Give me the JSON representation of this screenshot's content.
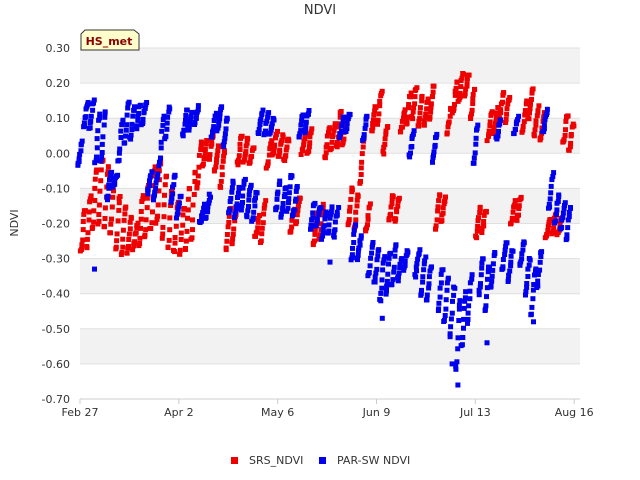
{
  "chart_data": {
    "type": "scatter",
    "title": "NDVI",
    "xlabel": "",
    "ylabel": "NDVI",
    "station_tag": "HS_met",
    "ylim": [
      -0.7,
      0.3
    ],
    "xlim_day": [
      0,
      172
    ],
    "y_ticks": [
      {
        "value": 0.3,
        "label": "0.30"
      },
      {
        "value": 0.2,
        "label": "0.20"
      },
      {
        "value": 0.1,
        "label": "0.10"
      },
      {
        "value": 0.0,
        "label": "0.00"
      },
      {
        "value": -0.1,
        "label": "-0.10"
      },
      {
        "value": -0.2,
        "label": "-0.20"
      },
      {
        "value": -0.3,
        "label": "-0.30"
      },
      {
        "value": -0.4,
        "label": "-0.40"
      },
      {
        "value": -0.5,
        "label": "-0.50"
      },
      {
        "value": -0.6,
        "label": "-0.60"
      },
      {
        "value": -0.7,
        "label": "-0.70"
      }
    ],
    "x_ticks": [
      {
        "day": 0,
        "label": "Feb 27"
      },
      {
        "day": 34,
        "label": "Apr 2"
      },
      {
        "day": 68,
        "label": "May 6"
      },
      {
        "day": 102,
        "label": "Jun 9"
      },
      {
        "day": 136,
        "label": "Jul 13"
      },
      {
        "day": 170,
        "label": "Aug 16"
      }
    ],
    "legend_position": "bottom-center",
    "series": [
      {
        "name": "SRS_NDVI",
        "color": "#ee0000",
        "daily_cycles": [
          {
            "day": 1,
            "max": -0.16,
            "min": -0.28
          },
          {
            "day": 3,
            "max": -0.12,
            "min": -0.27
          },
          {
            "day": 5,
            "max": -0.05,
            "min": -0.22
          },
          {
            "day": 7,
            "max": -0.02,
            "min": -0.2
          },
          {
            "day": 9,
            "max": -0.04,
            "min": -0.21
          },
          {
            "day": 11,
            "max": -0.08,
            "min": -0.23
          },
          {
            "day": 13,
            "max": -0.12,
            "min": -0.27
          },
          {
            "day": 15,
            "max": -0.15,
            "min": -0.29
          },
          {
            "day": 17,
            "max": -0.18,
            "min": -0.28
          },
          {
            "day": 19,
            "max": -0.2,
            "min": -0.27
          },
          {
            "day": 21,
            "max": -0.12,
            "min": -0.26
          },
          {
            "day": 23,
            "max": -0.08,
            "min": -0.24
          },
          {
            "day": 25,
            "max": -0.04,
            "min": -0.22
          },
          {
            "day": 27,
            "max": -0.02,
            "min": -0.2
          },
          {
            "day": 29,
            "max": -0.06,
            "min": -0.24
          },
          {
            "day": 31,
            "max": -0.1,
            "min": -0.27
          },
          {
            "day": 33,
            "max": -0.14,
            "min": -0.28
          },
          {
            "day": 35,
            "max": -0.16,
            "min": -0.29
          },
          {
            "day": 37,
            "max": -0.1,
            "min": -0.28
          },
          {
            "day": 39,
            "max": -0.05,
            "min": -0.25
          },
          {
            "day": 41,
            "max": 0.03,
            "min": -0.1
          },
          {
            "day": 43,
            "max": 0.04,
            "min": -0.03
          },
          {
            "day": 45,
            "max": 0.05,
            "min": -0.02
          },
          {
            "day": 47,
            "max": 0.02,
            "min": -0.05
          },
          {
            "day": 49,
            "max": 0.01,
            "min": -0.1
          },
          {
            "day": 51,
            "max": -0.16,
            "min": -0.27
          },
          {
            "day": 53,
            "max": -0.17,
            "min": -0.26
          },
          {
            "day": 55,
            "max": 0.05,
            "min": -0.03
          },
          {
            "day": 57,
            "max": 0.04,
            "min": -0.02
          },
          {
            "day": 59,
            "max": 0.02,
            "min": -0.03
          },
          {
            "day": 61,
            "max": -0.18,
            "min": -0.24
          },
          {
            "day": 63,
            "max": -0.14,
            "min": -0.25
          },
          {
            "day": 65,
            "max": 0.03,
            "min": -0.04
          },
          {
            "day": 67,
            "max": 0.06,
            "min": -0.01
          },
          {
            "day": 69,
            "max": 0.05,
            "min": -0.01
          },
          {
            "day": 71,
            "max": 0.04,
            "min": -0.02
          },
          {
            "day": 73,
            "max": -0.16,
            "min": -0.23
          },
          {
            "day": 75,
            "max": -0.13,
            "min": -0.2
          },
          {
            "day": 77,
            "max": 0.06,
            "min": 0.0
          },
          {
            "day": 79,
            "max": 0.07,
            "min": 0.0
          },
          {
            "day": 81,
            "max": -0.17,
            "min": -0.26
          },
          {
            "day": 83,
            "max": -0.15,
            "min": -0.24
          },
          {
            "day": 85,
            "max": 0.07,
            "min": -0.01
          },
          {
            "day": 87,
            "max": 0.08,
            "min": 0.01
          },
          {
            "day": 89,
            "max": 0.12,
            "min": 0.02
          },
          {
            "day": 91,
            "max": 0.1,
            "min": 0.02
          },
          {
            "day": 93,
            "max": -0.1,
            "min": -0.2
          },
          {
            "day": 95,
            "max": -0.12,
            "min": -0.22
          },
          {
            "day": 97,
            "max": 0.04,
            "min": -0.08
          },
          {
            "day": 99,
            "max": -0.15,
            "min": -0.22
          },
          {
            "day": 101,
            "max": 0.13,
            "min": 0.06
          },
          {
            "day": 103,
            "max": 0.18,
            "min": 0.08
          },
          {
            "day": 105,
            "max": 0.08,
            "min": 0.0
          },
          {
            "day": 107,
            "max": -0.12,
            "min": -0.19
          },
          {
            "day": 109,
            "max": -0.13,
            "min": -0.19
          },
          {
            "day": 111,
            "max": 0.12,
            "min": 0.06
          },
          {
            "day": 113,
            "max": 0.17,
            "min": 0.08
          },
          {
            "day": 115,
            "max": 0.19,
            "min": 0.1
          },
          {
            "day": 117,
            "max": 0.16,
            "min": 0.08
          },
          {
            "day": 119,
            "max": 0.15,
            "min": 0.08
          },
          {
            "day": 121,
            "max": 0.19,
            "min": 0.1
          },
          {
            "day": 123,
            "max": -0.12,
            "min": -0.22
          },
          {
            "day": 125,
            "max": -0.13,
            "min": -0.19
          },
          {
            "day": 127,
            "max": 0.13,
            "min": 0.06
          },
          {
            "day": 129,
            "max": 0.2,
            "min": 0.12
          },
          {
            "day": 131,
            "max": 0.23,
            "min": 0.15
          },
          {
            "day": 133,
            "max": 0.22,
            "min": 0.16
          },
          {
            "day": 135,
            "max": 0.18,
            "min": 0.1
          },
          {
            "day": 137,
            "max": -0.15,
            "min": -0.24
          },
          {
            "day": 139,
            "max": -0.16,
            "min": -0.22
          },
          {
            "day": 141,
            "max": 0.12,
            "min": 0.04
          },
          {
            "day": 143,
            "max": 0.13,
            "min": 0.06
          },
          {
            "day": 145,
            "max": 0.17,
            "min": 0.1
          },
          {
            "day": 147,
            "max": 0.16,
            "min": 0.09
          },
          {
            "day": 149,
            "max": -0.14,
            "min": -0.2
          },
          {
            "day": 151,
            "max": -0.13,
            "min": -0.19
          },
          {
            "day": 153,
            "max": 0.15,
            "min": 0.06
          },
          {
            "day": 155,
            "max": 0.18,
            "min": 0.1
          },
          {
            "day": 157,
            "max": 0.13,
            "min": 0.05
          },
          {
            "day": 159,
            "max": 0.11,
            "min": 0.04
          },
          {
            "day": 161,
            "max": -0.19,
            "min": -0.24
          },
          {
            "day": 163,
            "max": -0.17,
            "min": -0.23
          },
          {
            "day": 165,
            "max": -0.19,
            "min": -0.23
          },
          {
            "day": 167,
            "max": 0.11,
            "min": 0.03
          },
          {
            "day": 169,
            "max": 0.08,
            "min": 0.01
          }
        ]
      },
      {
        "name": "PAR-SW NDVI",
        "color": "#0000ee",
        "daily_cycles": [
          {
            "day": 0,
            "max": 0.03,
            "min": -0.03
          },
          {
            "day": 2,
            "max": 0.14,
            "min": 0.08
          },
          {
            "day": 4,
            "max": 0.15,
            "min": 0.07
          },
          {
            "day": 6,
            "max": 0.11,
            "min": -0.03
          },
          {
            "day": 8,
            "max": 0.12,
            "min": -0.02
          },
          {
            "day": 10,
            "max": -0.05,
            "min": -0.13
          },
          {
            "day": 12,
            "max": -0.06,
            "min": -0.1
          },
          {
            "day": 14,
            "max": 0.1,
            "min": -0.02
          },
          {
            "day": 16,
            "max": 0.14,
            "min": 0.03
          },
          {
            "day": 18,
            "max": 0.13,
            "min": 0.04
          },
          {
            "day": 20,
            "max": 0.14,
            "min": 0.07
          },
          {
            "day": 22,
            "max": 0.14,
            "min": 0.08
          },
          {
            "day": 24,
            "max": -0.05,
            "min": -0.11
          },
          {
            "day": 26,
            "max": -0.06,
            "min": -0.13
          },
          {
            "day": 28,
            "max": 0.1,
            "min": -0.03
          },
          {
            "day": 30,
            "max": 0.13,
            "min": 0.04
          },
          {
            "day": 32,
            "max": -0.06,
            "min": -0.14
          },
          {
            "day": 34,
            "max": -0.12,
            "min": -0.18
          },
          {
            "day": 36,
            "max": 0.12,
            "min": 0.05
          },
          {
            "day": 38,
            "max": 0.12,
            "min": 0.07
          },
          {
            "day": 40,
            "max": 0.13,
            "min": 0.08
          },
          {
            "day": 42,
            "max": -0.15,
            "min": -0.2
          },
          {
            "day": 44,
            "max": -0.12,
            "min": -0.18
          },
          {
            "day": 46,
            "max": 0.11,
            "min": 0.05
          },
          {
            "day": 48,
            "max": 0.13,
            "min": 0.07
          },
          {
            "day": 50,
            "max": 0.1,
            "min": 0.02
          },
          {
            "day": 52,
            "max": -0.08,
            "min": -0.17
          },
          {
            "day": 54,
            "max": -0.1,
            "min": -0.18
          },
          {
            "day": 56,
            "max": -0.08,
            "min": -0.16
          },
          {
            "day": 58,
            "max": -0.09,
            "min": -0.18
          },
          {
            "day": 60,
            "max": -0.11,
            "min": -0.19
          },
          {
            "day": 62,
            "max": 0.12,
            "min": 0.06
          },
          {
            "day": 64,
            "max": 0.11,
            "min": 0.05
          },
          {
            "day": 66,
            "max": 0.1,
            "min": 0.06
          },
          {
            "day": 68,
            "max": -0.08,
            "min": -0.16
          },
          {
            "day": 70,
            "max": -0.1,
            "min": -0.18
          },
          {
            "day": 72,
            "max": -0.06,
            "min": -0.16
          },
          {
            "day": 74,
            "max": -0.1,
            "min": -0.18
          },
          {
            "day": 76,
            "max": 0.11,
            "min": 0.05
          },
          {
            "day": 78,
            "max": 0.12,
            "min": 0.06
          },
          {
            "day": 80,
            "max": -0.14,
            "min": -0.22
          },
          {
            "day": 82,
            "max": -0.15,
            "min": -0.21
          },
          {
            "day": 84,
            "max": -0.17,
            "min": -0.24
          },
          {
            "day": 86,
            "max": -0.15,
            "min": -0.23
          },
          {
            "day": 88,
            "max": -0.16,
            "min": -0.24
          },
          {
            "day": 90,
            "max": 0.1,
            "min": 0.05
          },
          {
            "day": 92,
            "max": 0.11,
            "min": 0.06
          },
          {
            "day": 94,
            "max": -0.2,
            "min": -0.3
          },
          {
            "day": 96,
            "max": -0.24,
            "min": -0.3
          },
          {
            "day": 98,
            "max": 0.1,
            "min": 0.04
          },
          {
            "day": 100,
            "max": -0.26,
            "min": -0.35
          },
          {
            "day": 102,
            "max": -0.28,
            "min": -0.37
          },
          {
            "day": 104,
            "max": -0.3,
            "min": -0.42
          },
          {
            "day": 106,
            "max": -0.28,
            "min": -0.4
          },
          {
            "day": 108,
            "max": -0.26,
            "min": -0.38
          },
          {
            "day": 110,
            "max": -0.3,
            "min": -0.36
          },
          {
            "day": 112,
            "max": -0.28,
            "min": -0.33
          },
          {
            "day": 114,
            "max": 0.06,
            "min": -0.01
          },
          {
            "day": 116,
            "max": -0.28,
            "min": -0.35
          },
          {
            "day": 118,
            "max": -0.3,
            "min": -0.4
          },
          {
            "day": 120,
            "max": -0.32,
            "min": -0.42
          },
          {
            "day": 122,
            "max": 0.05,
            "min": -0.02
          },
          {
            "day": 124,
            "max": -0.33,
            "min": -0.45
          },
          {
            "day": 126,
            "max": -0.35,
            "min": -0.48
          },
          {
            "day": 128,
            "max": -0.38,
            "min": -0.52
          },
          {
            "day": 130,
            "max": -0.42,
            "min": -0.62
          },
          {
            "day": 132,
            "max": -0.4,
            "min": -0.55
          },
          {
            "day": 134,
            "max": -0.35,
            "min": -0.48
          },
          {
            "day": 136,
            "max": 0.08,
            "min": -0.03
          },
          {
            "day": 138,
            "max": -0.3,
            "min": -0.4
          },
          {
            "day": 140,
            "max": -0.32,
            "min": -0.45
          },
          {
            "day": 142,
            "max": -0.28,
            "min": -0.38
          },
          {
            "day": 144,
            "max": 0.09,
            "min": 0.04
          },
          {
            "day": 146,
            "max": -0.25,
            "min": -0.33
          },
          {
            "day": 148,
            "max": -0.28,
            "min": -0.36
          },
          {
            "day": 150,
            "max": 0.1,
            "min": 0.06
          },
          {
            "day": 152,
            "max": -0.25,
            "min": -0.32
          },
          {
            "day": 154,
            "max": -0.3,
            "min": -0.4
          },
          {
            "day": 156,
            "max": -0.33,
            "min": -0.46
          },
          {
            "day": 158,
            "max": -0.28,
            "min": -0.38
          },
          {
            "day": 160,
            "max": 0.12,
            "min": 0.06
          },
          {
            "day": 162,
            "max": -0.06,
            "min": -0.16
          },
          {
            "day": 164,
            "max": -0.12,
            "min": -0.2
          },
          {
            "day": 166,
            "max": -0.14,
            "min": -0.22
          },
          {
            "day": 168,
            "max": -0.15,
            "min": -0.24
          }
        ],
        "outliers": [
          {
            "day": 5,
            "value": -0.33
          },
          {
            "day": 104,
            "value": -0.47
          },
          {
            "day": 130,
            "value": -0.66
          },
          {
            "day": 128,
            "value": -0.6
          },
          {
            "day": 140,
            "value": -0.54
          },
          {
            "day": 156,
            "value": -0.48
          },
          {
            "day": 86,
            "value": -0.31
          }
        ]
      }
    ]
  }
}
